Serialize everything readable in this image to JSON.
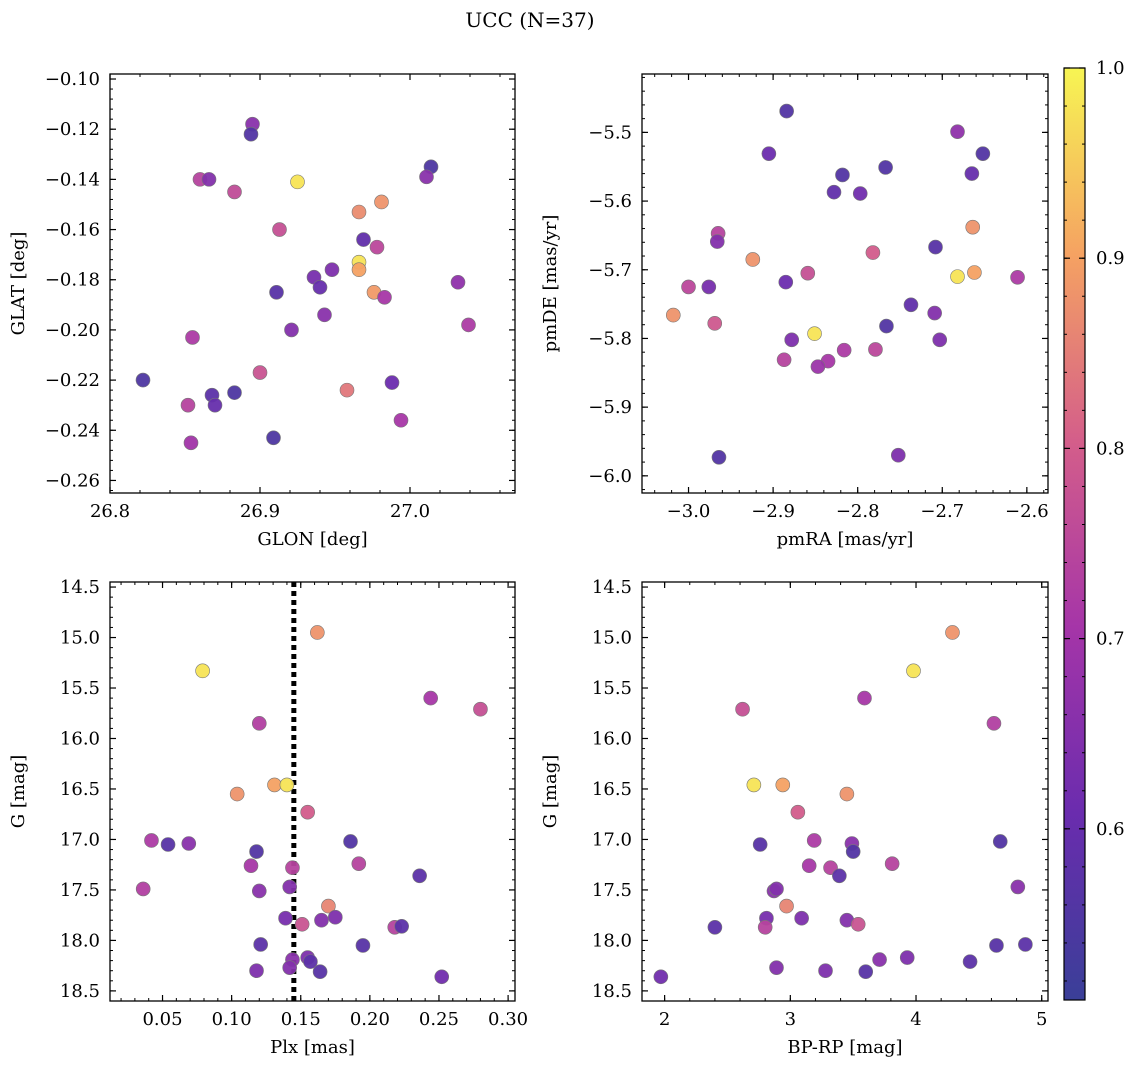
{
  "figure": {
    "title": "UCC (N=37)"
  },
  "colorbar": {
    "min": 0.51,
    "max": 1.0,
    "ticks": [
      0.6,
      0.7,
      0.8,
      0.9,
      1.0
    ],
    "tick_labels": [
      "0.6",
      "0.7",
      "0.8",
      "0.9",
      "1.0"
    ],
    "colormap": "plasma"
  },
  "chart_data": [
    {
      "id": "glon-glat",
      "type": "scatter",
      "xlabel": "GLON [deg]",
      "ylabel": "GLAT [deg]",
      "xlim": [
        26.8,
        27.07
      ],
      "ylim": [
        -0.265,
        -0.098
      ],
      "x_ticks": [
        26.8,
        26.9,
        27.0
      ],
      "x_tick_labels": [
        "26.8",
        "26.9",
        "27.0"
      ],
      "y_ticks": [
        -0.26,
        -0.24,
        -0.22,
        -0.2,
        -0.18,
        -0.16,
        -0.14,
        -0.12,
        -0.1
      ],
      "y_tick_labels": [
        "−0.26",
        "−0.24",
        "−0.22",
        "−0.20",
        "−0.18",
        "−0.16",
        "−0.14",
        "−0.12",
        "−0.10"
      ],
      "points": [
        {
          "x": 26.895,
          "y": -0.118,
          "c": 0.66
        },
        {
          "x": 26.894,
          "y": -0.122,
          "c": 0.56
        },
        {
          "x": 26.86,
          "y": -0.14,
          "c": 0.74
        },
        {
          "x": 26.866,
          "y": -0.14,
          "c": 0.65
        },
        {
          "x": 26.883,
          "y": -0.145,
          "c": 0.76
        },
        {
          "x": 26.925,
          "y": -0.141,
          "c": 0.98
        },
        {
          "x": 27.014,
          "y": -0.135,
          "c": 0.55
        },
        {
          "x": 27.011,
          "y": -0.139,
          "c": 0.66
        },
        {
          "x": 26.981,
          "y": -0.149,
          "c": 0.88
        },
        {
          "x": 26.966,
          "y": -0.153,
          "c": 0.87
        },
        {
          "x": 26.913,
          "y": -0.16,
          "c": 0.77
        },
        {
          "x": 26.969,
          "y": -0.164,
          "c": 0.59
        },
        {
          "x": 26.978,
          "y": -0.167,
          "c": 0.75
        },
        {
          "x": 26.966,
          "y": -0.173,
          "c": 0.98
        },
        {
          "x": 26.966,
          "y": -0.176,
          "c": 0.9
        },
        {
          "x": 26.948,
          "y": -0.176,
          "c": 0.64
        },
        {
          "x": 26.936,
          "y": -0.179,
          "c": 0.63
        },
        {
          "x": 26.94,
          "y": -0.183,
          "c": 0.6
        },
        {
          "x": 26.911,
          "y": -0.185,
          "c": 0.57
        },
        {
          "x": 26.976,
          "y": -0.185,
          "c": 0.89
        },
        {
          "x": 26.983,
          "y": -0.187,
          "c": 0.71
        },
        {
          "x": 27.032,
          "y": -0.181,
          "c": 0.67
        },
        {
          "x": 26.921,
          "y": -0.2,
          "c": 0.65
        },
        {
          "x": 26.943,
          "y": -0.194,
          "c": 0.66
        },
        {
          "x": 27.039,
          "y": -0.198,
          "c": 0.72
        },
        {
          "x": 26.855,
          "y": -0.203,
          "c": 0.72
        },
        {
          "x": 26.9,
          "y": -0.217,
          "c": 0.78
        },
        {
          "x": 26.822,
          "y": -0.22,
          "c": 0.55
        },
        {
          "x": 26.988,
          "y": -0.221,
          "c": 0.61
        },
        {
          "x": 26.958,
          "y": -0.224,
          "c": 0.84
        },
        {
          "x": 26.868,
          "y": -0.226,
          "c": 0.58
        },
        {
          "x": 26.883,
          "y": -0.225,
          "c": 0.55
        },
        {
          "x": 26.87,
          "y": -0.23,
          "c": 0.6
        },
        {
          "x": 26.852,
          "y": -0.23,
          "c": 0.74
        },
        {
          "x": 26.994,
          "y": -0.236,
          "c": 0.71
        },
        {
          "x": 26.909,
          "y": -0.243,
          "c": 0.55
        },
        {
          "x": 26.854,
          "y": -0.245,
          "c": 0.7
        }
      ]
    },
    {
      "id": "pmra-pmde",
      "type": "scatter",
      "xlabel": "pmRA [mas/yr]",
      "ylabel": "pmDE [mas/yr]",
      "xlim": [
        -3.055,
        -2.575
      ],
      "ylim": [
        -6.025,
        -5.415
      ],
      "x_ticks": [
        -3.0,
        -2.9,
        -2.8,
        -2.7,
        -2.6
      ],
      "x_tick_labels": [
        "−3.0",
        "−2.9",
        "−2.8",
        "−2.7",
        "−2.6"
      ],
      "y_ticks": [
        -6.0,
        -5.9,
        -5.8,
        -5.7,
        -5.6,
        -5.5
      ],
      "y_tick_labels": [
        "−6.0",
        "−5.9",
        "−5.8",
        "−5.7",
        "−5.6",
        "−5.5"
      ],
      "points": [
        {
          "x": -2.884,
          "y": -5.469,
          "c": 0.56
        },
        {
          "x": -2.682,
          "y": -5.499,
          "c": 0.67
        },
        {
          "x": -2.905,
          "y": -5.531,
          "c": 0.61
        },
        {
          "x": -2.652,
          "y": -5.531,
          "c": 0.56
        },
        {
          "x": -2.767,
          "y": -5.551,
          "c": 0.56
        },
        {
          "x": -2.818,
          "y": -5.562,
          "c": 0.56
        },
        {
          "x": -2.665,
          "y": -5.56,
          "c": 0.6
        },
        {
          "x": -2.828,
          "y": -5.587,
          "c": 0.59
        },
        {
          "x": -2.797,
          "y": -5.589,
          "c": 0.62
        },
        {
          "x": -2.965,
          "y": -5.647,
          "c": 0.74
        },
        {
          "x": -2.966,
          "y": -5.659,
          "c": 0.65
        },
        {
          "x": -2.664,
          "y": -5.638,
          "c": 0.88
        },
        {
          "x": -2.708,
          "y": -5.667,
          "c": 0.57
        },
        {
          "x": -2.782,
          "y": -5.675,
          "c": 0.8
        },
        {
          "x": -2.924,
          "y": -5.685,
          "c": 0.88
        },
        {
          "x": -2.859,
          "y": -5.705,
          "c": 0.77
        },
        {
          "x": -2.662,
          "y": -5.704,
          "c": 0.9
        },
        {
          "x": -2.682,
          "y": -5.71,
          "c": 0.98
        },
        {
          "x": -2.611,
          "y": -5.711,
          "c": 0.72
        },
        {
          "x": -2.885,
          "y": -5.718,
          "c": 0.61
        },
        {
          "x": -3.0,
          "y": -5.725,
          "c": 0.75
        },
        {
          "x": -2.976,
          "y": -5.725,
          "c": 0.63
        },
        {
          "x": -2.737,
          "y": -5.751,
          "c": 0.59
        },
        {
          "x": -2.709,
          "y": -5.763,
          "c": 0.65
        },
        {
          "x": -3.018,
          "y": -5.766,
          "c": 0.88
        },
        {
          "x": -2.969,
          "y": -5.778,
          "c": 0.79
        },
        {
          "x": -2.766,
          "y": -5.782,
          "c": 0.56
        },
        {
          "x": -2.851,
          "y": -5.793,
          "c": 0.98
        },
        {
          "x": -2.878,
          "y": -5.802,
          "c": 0.64
        },
        {
          "x": -2.703,
          "y": -5.802,
          "c": 0.64
        },
        {
          "x": -2.816,
          "y": -5.817,
          "c": 0.72
        },
        {
          "x": -2.779,
          "y": -5.816,
          "c": 0.75
        },
        {
          "x": -2.887,
          "y": -5.831,
          "c": 0.74
        },
        {
          "x": -2.835,
          "y": -5.833,
          "c": 0.71
        },
        {
          "x": -2.847,
          "y": -5.841,
          "c": 0.69
        },
        {
          "x": -2.964,
          "y": -5.973,
          "c": 0.56
        },
        {
          "x": -2.752,
          "y": -5.97,
          "c": 0.64
        }
      ]
    },
    {
      "id": "plx-g",
      "type": "scatter",
      "xlabel": "Plx [mas]",
      "ylabel": "G [mag]",
      "xlim": [
        0.012,
        0.305
      ],
      "ylim": [
        18.6,
        14.45
      ],
      "y_inverted": true,
      "x_ticks": [
        0.05,
        0.1,
        0.15,
        0.2,
        0.25,
        0.3
      ],
      "x_tick_labels": [
        "0.05",
        "0.10",
        "0.15",
        "0.20",
        "0.25",
        "0.30"
      ],
      "y_ticks": [
        14.5,
        15.0,
        15.5,
        16.0,
        16.5,
        17.0,
        17.5,
        18.0,
        18.5
      ],
      "y_tick_labels": [
        "14.5",
        "15.0",
        "15.5",
        "16.0",
        "16.5",
        "17.0",
        "17.5",
        "18.0",
        "18.5"
      ],
      "vline": {
        "x": 0.145,
        "style": "dotted"
      },
      "points": [
        {
          "x": 0.162,
          "y": 14.95,
          "c": 0.88
        },
        {
          "x": 0.079,
          "y": 15.33,
          "c": 0.98
        },
        {
          "x": 0.244,
          "y": 15.6,
          "c": 0.71
        },
        {
          "x": 0.28,
          "y": 15.71,
          "c": 0.77
        },
        {
          "x": 0.12,
          "y": 15.85,
          "c": 0.73
        },
        {
          "x": 0.131,
          "y": 16.46,
          "c": 0.9
        },
        {
          "x": 0.14,
          "y": 16.46,
          "c": 0.98
        },
        {
          "x": 0.104,
          "y": 16.55,
          "c": 0.88
        },
        {
          "x": 0.155,
          "y": 16.73,
          "c": 0.8
        },
        {
          "x": 0.042,
          "y": 17.01,
          "c": 0.72
        },
        {
          "x": 0.054,
          "y": 17.05,
          "c": 0.57
        },
        {
          "x": 0.069,
          "y": 17.04,
          "c": 0.66
        },
        {
          "x": 0.186,
          "y": 17.02,
          "c": 0.56
        },
        {
          "x": 0.118,
          "y": 17.12,
          "c": 0.56
        },
        {
          "x": 0.114,
          "y": 17.26,
          "c": 0.71
        },
        {
          "x": 0.144,
          "y": 17.28,
          "c": 0.74
        },
        {
          "x": 0.192,
          "y": 17.24,
          "c": 0.74
        },
        {
          "x": 0.236,
          "y": 17.36,
          "c": 0.58
        },
        {
          "x": 0.036,
          "y": 17.49,
          "c": 0.73
        },
        {
          "x": 0.12,
          "y": 17.51,
          "c": 0.66
        },
        {
          "x": 0.142,
          "y": 17.47,
          "c": 0.65
        },
        {
          "x": 0.17,
          "y": 17.66,
          "c": 0.86
        },
        {
          "x": 0.139,
          "y": 17.78,
          "c": 0.63
        },
        {
          "x": 0.151,
          "y": 17.84,
          "c": 0.78
        },
        {
          "x": 0.165,
          "y": 17.8,
          "c": 0.65
        },
        {
          "x": 0.175,
          "y": 17.77,
          "c": 0.64
        },
        {
          "x": 0.218,
          "y": 17.87,
          "c": 0.74
        },
        {
          "x": 0.223,
          "y": 17.86,
          "c": 0.58
        },
        {
          "x": 0.121,
          "y": 18.04,
          "c": 0.58
        },
        {
          "x": 0.195,
          "y": 18.05,
          "c": 0.57
        },
        {
          "x": 0.144,
          "y": 18.19,
          "c": 0.66
        },
        {
          "x": 0.155,
          "y": 18.17,
          "c": 0.64
        },
        {
          "x": 0.157,
          "y": 18.21,
          "c": 0.58
        },
        {
          "x": 0.118,
          "y": 18.3,
          "c": 0.64
        },
        {
          "x": 0.142,
          "y": 18.27,
          "c": 0.65
        },
        {
          "x": 0.164,
          "y": 18.31,
          "c": 0.57
        },
        {
          "x": 0.252,
          "y": 18.36,
          "c": 0.62
        }
      ]
    },
    {
      "id": "bprp-g",
      "type": "scatter",
      "xlabel": "BP-RP [mag]",
      "ylabel": "G [mag]",
      "xlim": [
        1.82,
        5.05
      ],
      "ylim": [
        18.6,
        14.45
      ],
      "y_inverted": true,
      "x_ticks": [
        2,
        3,
        4,
        5
      ],
      "x_tick_labels": [
        "2",
        "3",
        "4",
        "5"
      ],
      "y_ticks": [
        14.5,
        15.0,
        15.5,
        16.0,
        16.5,
        17.0,
        17.5,
        18.0,
        18.5
      ],
      "y_tick_labels": [
        "14.5",
        "15.0",
        "15.5",
        "16.0",
        "16.5",
        "17.0",
        "17.5",
        "18.0",
        "18.5"
      ],
      "points": [
        {
          "x": 4.29,
          "y": 14.95,
          "c": 0.88
        },
        {
          "x": 3.98,
          "y": 15.33,
          "c": 0.98
        },
        {
          "x": 3.59,
          "y": 15.6,
          "c": 0.71
        },
        {
          "x": 2.62,
          "y": 15.71,
          "c": 0.77
        },
        {
          "x": 4.62,
          "y": 15.85,
          "c": 0.73
        },
        {
          "x": 2.71,
          "y": 16.46,
          "c": 0.98
        },
        {
          "x": 2.94,
          "y": 16.46,
          "c": 0.9
        },
        {
          "x": 3.45,
          "y": 16.55,
          "c": 0.88
        },
        {
          "x": 3.06,
          "y": 16.73,
          "c": 0.8
        },
        {
          "x": 2.76,
          "y": 17.05,
          "c": 0.57
        },
        {
          "x": 3.19,
          "y": 17.01,
          "c": 0.72
        },
        {
          "x": 3.49,
          "y": 17.04,
          "c": 0.66
        },
        {
          "x": 4.67,
          "y": 17.02,
          "c": 0.56
        },
        {
          "x": 3.5,
          "y": 17.12,
          "c": 0.56
        },
        {
          "x": 3.15,
          "y": 17.26,
          "c": 0.71
        },
        {
          "x": 3.32,
          "y": 17.28,
          "c": 0.74
        },
        {
          "x": 3.81,
          "y": 17.24,
          "c": 0.74
        },
        {
          "x": 3.39,
          "y": 17.36,
          "c": 0.58
        },
        {
          "x": 2.87,
          "y": 17.51,
          "c": 0.66
        },
        {
          "x": 2.89,
          "y": 17.49,
          "c": 0.65
        },
        {
          "x": 4.81,
          "y": 17.47,
          "c": 0.66
        },
        {
          "x": 2.97,
          "y": 17.66,
          "c": 0.86
        },
        {
          "x": 2.81,
          "y": 17.78,
          "c": 0.63
        },
        {
          "x": 3.09,
          "y": 17.78,
          "c": 0.64
        },
        {
          "x": 3.45,
          "y": 17.8,
          "c": 0.65
        },
        {
          "x": 3.54,
          "y": 17.84,
          "c": 0.78
        },
        {
          "x": 2.4,
          "y": 17.87,
          "c": 0.58
        },
        {
          "x": 2.8,
          "y": 17.87,
          "c": 0.74
        },
        {
          "x": 4.87,
          "y": 18.04,
          "c": 0.58
        },
        {
          "x": 4.64,
          "y": 18.05,
          "c": 0.57
        },
        {
          "x": 3.71,
          "y": 18.19,
          "c": 0.66
        },
        {
          "x": 3.93,
          "y": 18.17,
          "c": 0.64
        },
        {
          "x": 4.43,
          "y": 18.21,
          "c": 0.58
        },
        {
          "x": 2.89,
          "y": 18.27,
          "c": 0.65
        },
        {
          "x": 3.28,
          "y": 18.3,
          "c": 0.64
        },
        {
          "x": 1.97,
          "y": 18.36,
          "c": 0.62
        },
        {
          "x": 3.6,
          "y": 18.31,
          "c": 0.57
        }
      ]
    }
  ]
}
